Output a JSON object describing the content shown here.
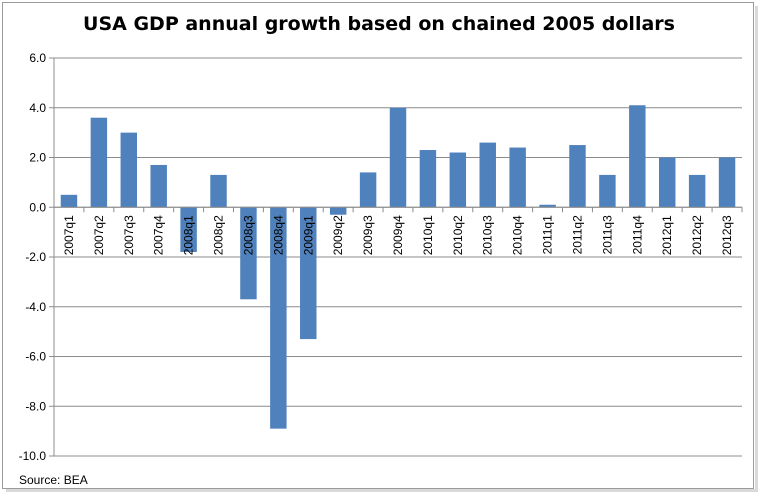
{
  "chart_data": {
    "type": "bar",
    "title": "USA GDP annual growth based on chained 2005 dollars",
    "xlabel": "",
    "ylabel": "",
    "ylim": [
      -10,
      6
    ],
    "ytick_step": 2,
    "yticks": [
      "6.0",
      "4.0",
      "2.0",
      "0.0",
      "-2.0",
      "-4.0",
      "-6.0",
      "-8.0",
      "-10.0"
    ],
    "grid": true,
    "bar_color": "#4f81bd",
    "categories": [
      "2007q1",
      "2007q2",
      "2007q3",
      "2007q4",
      "2008q1",
      "2008q2",
      "2008q3",
      "2008q4",
      "2009q1",
      "2009q2",
      "2009q3",
      "2009q4",
      "2010q1",
      "2010q2",
      "2010q3",
      "2010q4",
      "2011q1",
      "2011q2",
      "2011q3",
      "2011q4",
      "2012q1",
      "2012q2",
      "2012q3"
    ],
    "values": [
      0.5,
      3.6,
      3.0,
      1.7,
      -1.8,
      1.3,
      -3.7,
      -8.9,
      -5.3,
      -0.3,
      1.4,
      4.0,
      2.3,
      2.2,
      2.6,
      2.4,
      0.1,
      2.5,
      1.3,
      4.1,
      2.0,
      1.3,
      2.0
    ],
    "source": "Source: BEA"
  }
}
